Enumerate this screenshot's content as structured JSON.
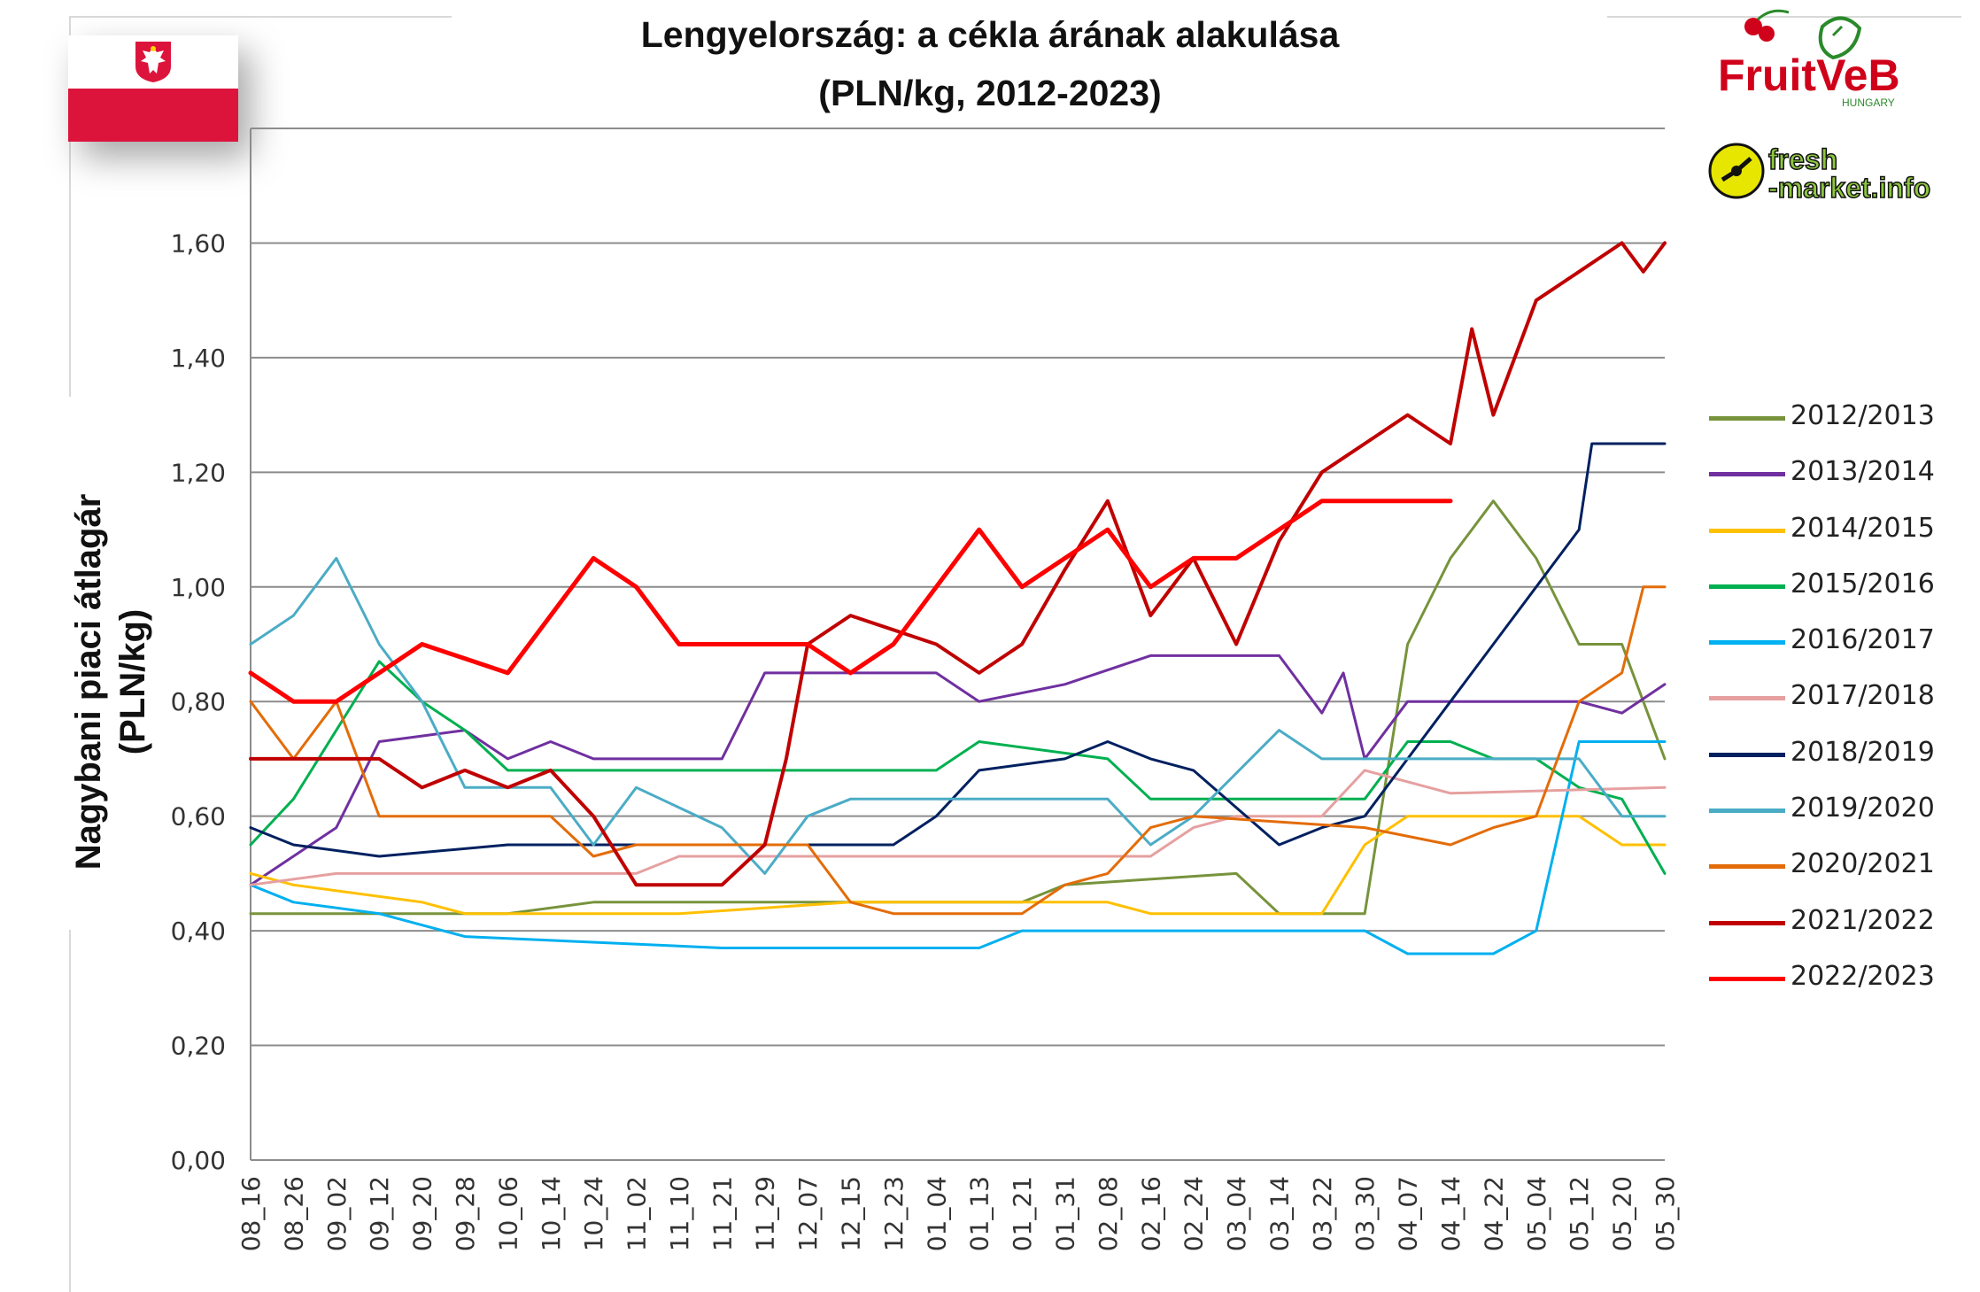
{
  "chart_data": {
    "type": "line",
    "title": "Lengyelország: a cékla árának alakulása",
    "subtitle": "(PLN/kg, 2012-2023)",
    "ylabel": "Nagybani piaci átlagár (PLN/kg)",
    "ylabel_lines": [
      "Nagybani piaci átlagár",
      "(PLN/kg)"
    ],
    "xlabel": "",
    "ylim": [
      0,
      1.8
    ],
    "yticks": [
      "0,00",
      "0,20",
      "0,40",
      "0,60",
      "0,80",
      "1,00",
      "1,20",
      "1,40",
      "1,60"
    ],
    "ytick_values": [
      0,
      0.2,
      0.4,
      0.6,
      0.8,
      1.0,
      1.2,
      1.4,
      1.6
    ],
    "grid": true,
    "legend_position": "right",
    "x": [
      "08_16",
      "08_26",
      "09_02",
      "09_12",
      "09_20",
      "09_28",
      "10_06",
      "10_14",
      "10_24",
      "11_02",
      "11_10",
      "11_21",
      "11_29",
      "12_07",
      "12_15",
      "12_23",
      "01_04",
      "01_13",
      "01_21",
      "01_31",
      "02_08",
      "02_16",
      "02_24",
      "03_04",
      "03_14",
      "03_22",
      "03_30",
      "04_07",
      "04_14",
      "04_22",
      "05_04",
      "05_12",
      "05_20",
      "05_30"
    ],
    "series": [
      {
        "name": "2012/2013",
        "color": "#77933c",
        "width": 3,
        "points": [
          [
            0,
            0.43
          ],
          [
            6,
            0.43
          ],
          [
            8,
            0.45
          ],
          [
            18,
            0.45
          ],
          [
            19,
            0.48
          ],
          [
            23,
            0.5
          ],
          [
            24,
            0.43
          ],
          [
            26,
            0.43
          ],
          [
            27,
            0.9
          ],
          [
            28,
            1.05
          ],
          [
            29,
            1.15
          ],
          [
            30,
            1.05
          ],
          [
            31,
            0.9
          ],
          [
            32,
            0.9
          ],
          [
            33,
            0.7
          ]
        ]
      },
      {
        "name": "2013/2014",
        "color": "#7030a0",
        "width": 3,
        "points": [
          [
            0,
            0.48
          ],
          [
            2,
            0.58
          ],
          [
            3,
            0.73
          ],
          [
            4,
            0.74
          ],
          [
            5,
            0.75
          ],
          [
            6,
            0.7
          ],
          [
            7,
            0.73
          ],
          [
            8,
            0.7
          ],
          [
            11,
            0.7
          ],
          [
            12,
            0.85
          ],
          [
            16,
            0.85
          ],
          [
            17,
            0.8
          ],
          [
            19,
            0.83
          ],
          [
            21,
            0.88
          ],
          [
            24,
            0.88
          ],
          [
            25,
            0.78
          ],
          [
            25.5,
            0.85
          ],
          [
            26,
            0.7
          ],
          [
            27,
            0.8
          ],
          [
            31,
            0.8
          ],
          [
            32,
            0.78
          ],
          [
            33,
            0.83
          ]
        ]
      },
      {
        "name": "2014/2015",
        "color": "#ffc000",
        "width": 3,
        "points": [
          [
            0,
            0.5
          ],
          [
            1,
            0.48
          ],
          [
            4,
            0.45
          ],
          [
            5,
            0.43
          ],
          [
            10,
            0.43
          ],
          [
            14,
            0.45
          ],
          [
            20,
            0.45
          ],
          [
            21,
            0.43
          ],
          [
            25,
            0.43
          ],
          [
            26,
            0.55
          ],
          [
            27,
            0.6
          ],
          [
            31,
            0.6
          ],
          [
            32,
            0.55
          ],
          [
            33,
            0.55
          ]
        ]
      },
      {
        "name": "2015/2016",
        "color": "#00b050",
        "width": 3,
        "points": [
          [
            0,
            0.55
          ],
          [
            1,
            0.63
          ],
          [
            2,
            0.75
          ],
          [
            3,
            0.87
          ],
          [
            4,
            0.8
          ],
          [
            5,
            0.75
          ],
          [
            6,
            0.68
          ],
          [
            16,
            0.68
          ],
          [
            17,
            0.73
          ],
          [
            20,
            0.7
          ],
          [
            21,
            0.63
          ],
          [
            26,
            0.63
          ],
          [
            27,
            0.73
          ],
          [
            28,
            0.73
          ],
          [
            29,
            0.7
          ],
          [
            30,
            0.7
          ],
          [
            31,
            0.65
          ],
          [
            32,
            0.63
          ],
          [
            33,
            0.5
          ]
        ]
      },
      {
        "name": "2016/2017",
        "color": "#00b0f0",
        "width": 3,
        "points": [
          [
            0,
            0.48
          ],
          [
            1,
            0.45
          ],
          [
            3,
            0.43
          ],
          [
            5,
            0.39
          ],
          [
            11,
            0.37
          ],
          [
            17,
            0.37
          ],
          [
            18,
            0.4
          ],
          [
            26,
            0.4
          ],
          [
            27,
            0.36
          ],
          [
            29,
            0.36
          ],
          [
            30,
            0.4
          ],
          [
            31,
            0.73
          ],
          [
            33,
            0.73
          ]
        ]
      },
      {
        "name": "2017/2018",
        "color": "#e6a0a0",
        "width": 3,
        "points": [
          [
            0,
            0.48
          ],
          [
            2,
            0.5
          ],
          [
            9,
            0.5
          ],
          [
            10,
            0.53
          ],
          [
            20,
            0.53
          ],
          [
            21,
            0.53
          ],
          [
            22,
            0.58
          ],
          [
            23,
            0.6
          ],
          [
            25,
            0.6
          ],
          [
            26,
            0.68
          ],
          [
            28,
            0.64
          ],
          [
            33,
            0.65
          ]
        ]
      },
      {
        "name": "2018/2019",
        "color": "#002060",
        "width": 3,
        "points": [
          [
            0,
            0.58
          ],
          [
            1,
            0.55
          ],
          [
            3,
            0.53
          ],
          [
            6,
            0.55
          ],
          [
            15,
            0.55
          ],
          [
            16,
            0.6
          ],
          [
            17,
            0.68
          ],
          [
            19,
            0.7
          ],
          [
            20,
            0.73
          ],
          [
            21,
            0.7
          ],
          [
            22,
            0.68
          ],
          [
            24,
            0.55
          ],
          [
            25,
            0.58
          ],
          [
            26,
            0.6
          ],
          [
            27,
            0.7
          ],
          [
            28,
            0.8
          ],
          [
            29,
            0.9
          ],
          [
            30,
            1.0
          ],
          [
            31,
            1.1
          ],
          [
            31.3,
            1.25
          ],
          [
            33,
            1.25
          ]
        ]
      },
      {
        "name": "2019/2020",
        "color": "#4bacc6",
        "width": 3,
        "points": [
          [
            0,
            0.9
          ],
          [
            1,
            0.95
          ],
          [
            2,
            1.05
          ],
          [
            3,
            0.9
          ],
          [
            4,
            0.8
          ],
          [
            5,
            0.65
          ],
          [
            7,
            0.65
          ],
          [
            8,
            0.55
          ],
          [
            9,
            0.65
          ],
          [
            11,
            0.58
          ],
          [
            12,
            0.5
          ],
          [
            13,
            0.6
          ],
          [
            14,
            0.63
          ],
          [
            20,
            0.63
          ],
          [
            21,
            0.55
          ],
          [
            22,
            0.6
          ],
          [
            24,
            0.75
          ],
          [
            25,
            0.7
          ],
          [
            29,
            0.7
          ],
          [
            31,
            0.7
          ],
          [
            32,
            0.6
          ],
          [
            33,
            0.6
          ]
        ]
      },
      {
        "name": "2020/2021",
        "color": "#e36c09",
        "width": 3,
        "points": [
          [
            0,
            0.8
          ],
          [
            1,
            0.7
          ],
          [
            2,
            0.8
          ],
          [
            3,
            0.6
          ],
          [
            7,
            0.6
          ],
          [
            8,
            0.53
          ],
          [
            9,
            0.55
          ],
          [
            13,
            0.55
          ],
          [
            14,
            0.45
          ],
          [
            15,
            0.43
          ],
          [
            18,
            0.43
          ],
          [
            19,
            0.48
          ],
          [
            20,
            0.5
          ],
          [
            21,
            0.58
          ],
          [
            22,
            0.6
          ],
          [
            26,
            0.58
          ],
          [
            28,
            0.55
          ],
          [
            29,
            0.58
          ],
          [
            30,
            0.6
          ],
          [
            31,
            0.8
          ],
          [
            32,
            0.85
          ],
          [
            32.5,
            1.0
          ],
          [
            33,
            1.0
          ]
        ]
      },
      {
        "name": "2021/2022",
        "color": "#c00000",
        "width": 4,
        "points": [
          [
            0,
            0.7
          ],
          [
            3,
            0.7
          ],
          [
            4,
            0.65
          ],
          [
            5,
            0.68
          ],
          [
            6,
            0.65
          ],
          [
            7,
            0.68
          ],
          [
            8,
            0.6
          ],
          [
            9,
            0.48
          ],
          [
            11,
            0.48
          ],
          [
            12,
            0.55
          ],
          [
            12.5,
            0.7
          ],
          [
            13,
            0.9
          ],
          [
            14,
            0.95
          ],
          [
            16,
            0.9
          ],
          [
            17,
            0.85
          ],
          [
            18,
            0.9
          ],
          [
            19,
            1.03
          ],
          [
            20,
            1.15
          ],
          [
            21,
            0.95
          ],
          [
            22,
            1.05
          ],
          [
            23,
            0.9
          ],
          [
            24,
            1.08
          ],
          [
            25,
            1.2
          ],
          [
            26,
            1.25
          ],
          [
            27,
            1.3
          ],
          [
            28,
            1.25
          ],
          [
            28.5,
            1.45
          ],
          [
            29,
            1.3
          ],
          [
            30,
            1.5
          ],
          [
            31,
            1.55
          ],
          [
            32,
            1.6
          ],
          [
            32.5,
            1.55
          ],
          [
            33,
            1.6
          ]
        ]
      },
      {
        "name": "2022/2023",
        "color": "#ff0000",
        "width": 5,
        "points": [
          [
            0,
            0.85
          ],
          [
            1,
            0.8
          ],
          [
            2,
            0.8
          ],
          [
            3,
            0.85
          ],
          [
            4,
            0.9
          ],
          [
            6,
            0.85
          ],
          [
            8,
            1.05
          ],
          [
            9,
            1.0
          ],
          [
            10,
            0.9
          ],
          [
            13,
            0.9
          ],
          [
            14,
            0.85
          ],
          [
            15,
            0.9
          ],
          [
            17,
            1.1
          ],
          [
            18,
            1.0
          ],
          [
            19,
            1.05
          ],
          [
            20,
            1.1
          ],
          [
            21,
            1.0
          ],
          [
            22,
            1.05
          ],
          [
            23,
            1.05
          ],
          [
            24,
            1.1
          ],
          [
            25,
            1.15
          ],
          [
            28,
            1.15
          ]
        ]
      }
    ]
  },
  "logos": {
    "fruitveb": "FruitVeB",
    "fruitveb_sub": "HUNGARY",
    "freshmarket": "fresh-market.info",
    "freshmarket_line1": "fresh",
    "freshmarket_line2": "-market.info"
  },
  "flag": {
    "country": "Poland",
    "colors": [
      "#ffffff",
      "#dc143c"
    ]
  }
}
